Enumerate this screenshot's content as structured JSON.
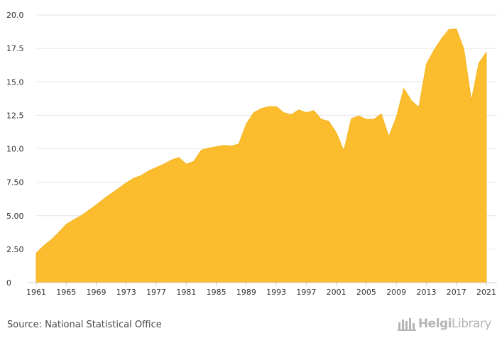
{
  "colors": {
    "area_fill": "#FBBC2E",
    "area_stroke": "#F5B41E",
    "grid": "#e6e6e6",
    "axis": "#cccccc",
    "text": "#333333"
  },
  "chart_data": {
    "type": "area",
    "title": "",
    "xlabel": "",
    "ylabel": "",
    "grid": true,
    "x": [
      1961,
      1962,
      1963,
      1964,
      1965,
      1966,
      1967,
      1968,
      1969,
      1970,
      1971,
      1972,
      1973,
      1974,
      1975,
      1976,
      1977,
      1978,
      1979,
      1980,
      1981,
      1982,
      1983,
      1984,
      1985,
      1986,
      1987,
      1988,
      1989,
      1990,
      1991,
      1992,
      1993,
      1994,
      1995,
      1996,
      1997,
      1998,
      1999,
      2000,
      2001,
      2002,
      2003,
      2004,
      2005,
      2006,
      2007,
      2008,
      2009,
      2010,
      2011,
      2012,
      2013,
      2014,
      2015,
      2016,
      2017,
      2018,
      2019,
      2020,
      2021
    ],
    "values": [
      2.2,
      2.75,
      3.2,
      3.75,
      4.35,
      4.7,
      5.0,
      5.4,
      5.8,
      6.25,
      6.65,
      7.05,
      7.45,
      7.8,
      8.0,
      8.35,
      8.6,
      8.85,
      9.15,
      9.35,
      8.85,
      9.05,
      9.9,
      10.05,
      10.15,
      10.25,
      10.2,
      10.35,
      11.85,
      12.7,
      13.0,
      13.15,
      13.15,
      12.7,
      12.55,
      12.9,
      12.7,
      12.85,
      12.2,
      12.05,
      11.2,
      9.85,
      12.25,
      12.45,
      12.2,
      12.2,
      12.6,
      10.9,
      12.35,
      14.5,
      13.6,
      13.1,
      16.3,
      17.35,
      18.2,
      18.9,
      18.95,
      17.45,
      13.6,
      16.4,
      17.2
    ],
    "x_ticks": [
      "1961",
      "1965",
      "1969",
      "1973",
      "1977",
      "1981",
      "1985",
      "1989",
      "1993",
      "1997",
      "2001",
      "2005",
      "2009",
      "2013",
      "2017",
      "2021"
    ],
    "x_tick_values": [
      1961,
      1965,
      1969,
      1973,
      1977,
      1981,
      1985,
      1989,
      1993,
      1997,
      2001,
      2005,
      2009,
      2013,
      2017,
      2021
    ],
    "y_ticks": [
      "0",
      "2.50",
      "5.00",
      "7.50",
      "10.0",
      "12.5",
      "15.0",
      "17.5",
      "20.0"
    ],
    "y_tick_values": [
      0,
      2.5,
      5,
      7.5,
      10,
      12.5,
      15,
      17.5,
      20
    ],
    "xlim": [
      1961,
      2021
    ],
    "ylim": [
      0,
      20
    ]
  },
  "source": "Source: National Statistical Office",
  "logo": {
    "part1": "Helgi",
    "part2": "Library"
  }
}
